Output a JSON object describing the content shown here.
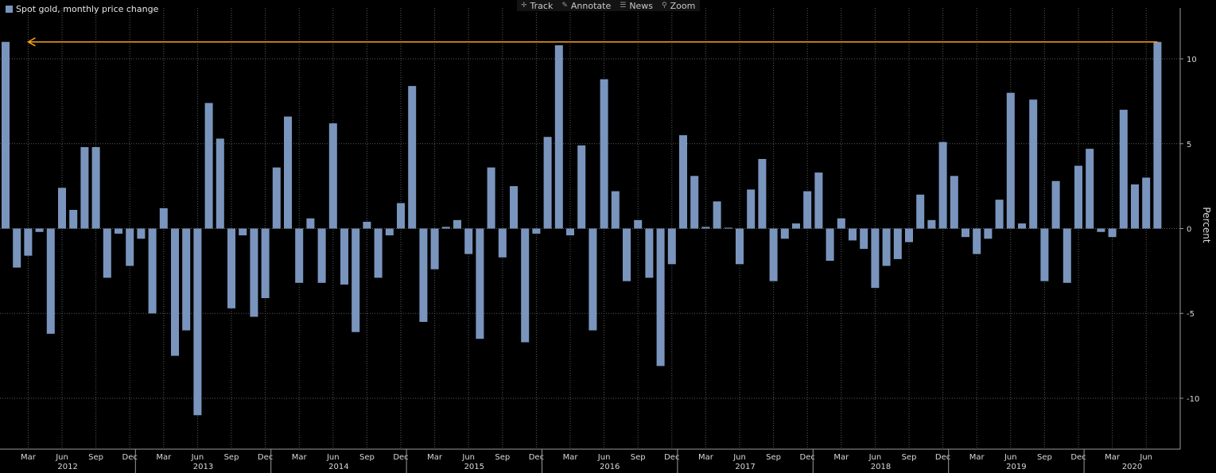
{
  "legend": {
    "label": "Spot gold, monthly price change",
    "color": "#7a95bd"
  },
  "toolbar": {
    "items": [
      {
        "label": "Track",
        "icon": "crosshair-icon",
        "glyph": "✛"
      },
      {
        "label": "Annotate",
        "icon": "pencil-icon",
        "glyph": "✎"
      },
      {
        "label": "News",
        "icon": "news-icon",
        "glyph": "☰"
      },
      {
        "label": "Zoom",
        "icon": "magnifier-icon",
        "glyph": "⚲"
      }
    ]
  },
  "colors": {
    "background": "#000000",
    "bar": "#7a95bd",
    "grid": "#5a5a5a",
    "axis": "#9a9a9a",
    "annotation": "#f7a21b"
  },
  "chart_data": {
    "type": "bar",
    "x_start": "2012-01",
    "x_end": "2020-07",
    "ylabel": "Percent",
    "ylim": [
      -13,
      13
    ],
    "yticks": [
      -10,
      -5,
      0,
      5,
      10
    ],
    "grid": true,
    "legend_position": "top-left",
    "month_labels": [
      {
        "label": "Mar",
        "date": "2012-03"
      },
      {
        "label": "Jun",
        "date": "2012-06"
      },
      {
        "label": "Sep",
        "date": "2012-09"
      },
      {
        "label": "Dec",
        "date": "2012-12"
      },
      {
        "label": "Mar",
        "date": "2013-03"
      },
      {
        "label": "Jun",
        "date": "2013-06"
      },
      {
        "label": "Sep",
        "date": "2013-09"
      },
      {
        "label": "Dec",
        "date": "2013-12"
      },
      {
        "label": "Mar",
        "date": "2014-03"
      },
      {
        "label": "Jun",
        "date": "2014-06"
      },
      {
        "label": "Sep",
        "date": "2014-09"
      },
      {
        "label": "Dec",
        "date": "2014-12"
      },
      {
        "label": "Mar",
        "date": "2015-03"
      },
      {
        "label": "Jun",
        "date": "2015-06"
      },
      {
        "label": "Sep",
        "date": "2015-09"
      },
      {
        "label": "Dec",
        "date": "2015-12"
      },
      {
        "label": "Mar",
        "date": "2016-03"
      },
      {
        "label": "Jun",
        "date": "2016-06"
      },
      {
        "label": "Sep",
        "date": "2016-09"
      },
      {
        "label": "Dec",
        "date": "2016-12"
      },
      {
        "label": "Mar",
        "date": "2017-03"
      },
      {
        "label": "Jun",
        "date": "2017-06"
      },
      {
        "label": "Sep",
        "date": "2017-09"
      },
      {
        "label": "Dec",
        "date": "2017-12"
      },
      {
        "label": "Mar",
        "date": "2018-03"
      },
      {
        "label": "Jun",
        "date": "2018-06"
      },
      {
        "label": "Sep",
        "date": "2018-09"
      },
      {
        "label": "Dec",
        "date": "2018-12"
      },
      {
        "label": "Mar",
        "date": "2019-03"
      },
      {
        "label": "Jun",
        "date": "2019-06"
      },
      {
        "label": "Sep",
        "date": "2019-09"
      },
      {
        "label": "Dec",
        "date": "2019-12"
      },
      {
        "label": "Mar",
        "date": "2020-03"
      },
      {
        "label": "Jun",
        "date": "2020-06"
      }
    ],
    "year_labels": [
      "2012",
      "2013",
      "2014",
      "2015",
      "2016",
      "2017",
      "2018",
      "2019",
      "2020"
    ],
    "annotation": {
      "type": "horizontal-arrow",
      "y": 11.0,
      "from_date": "2020-07",
      "to_date": "2012-03",
      "color": "#f7a21b"
    },
    "series": [
      {
        "values": [
          11.0,
          -2.3,
          -1.6,
          -0.2,
          -6.2,
          2.4,
          1.1,
          4.8,
          4.8,
          -2.9,
          -0.3,
          -2.2,
          -0.6,
          -5.0,
          1.2,
          -7.5,
          -6.0,
          -11.0,
          7.4,
          5.3,
          -4.7,
          -0.4,
          -5.2,
          -4.1,
          3.6,
          6.6,
          -3.2,
          0.6,
          -3.2,
          6.2,
          -3.3,
          -6.1,
          0.4,
          -2.9,
          -0.4,
          1.5,
          8.4,
          -5.5,
          -2.4,
          0.1,
          0.5,
          -1.5,
          -6.5,
          3.6,
          -1.7,
          2.5,
          -6.7,
          -0.3,
          5.4,
          10.8,
          -0.4,
          4.9,
          -6.0,
          8.8,
          2.2,
          -3.1,
          0.5,
          -2.9,
          -8.1,
          -2.1,
          5.5,
          3.1,
          0.1,
          1.6,
          0.05,
          -2.1,
          2.3,
          4.1,
          -3.1,
          -0.6,
          0.3,
          2.2,
          3.3,
          -1.9,
          0.6,
          -0.7,
          -1.2,
          -3.5,
          -2.2,
          -1.8,
          -0.8,
          2.0,
          0.5,
          5.1,
          3.1,
          -0.5,
          -1.5,
          -0.6,
          1.7,
          8.0,
          0.3,
          7.6,
          -3.1,
          2.8,
          -3.2,
          3.7,
          4.7,
          -0.2,
          -0.5,
          7.0,
          2.6,
          3.0,
          11.0
        ]
      }
    ]
  }
}
